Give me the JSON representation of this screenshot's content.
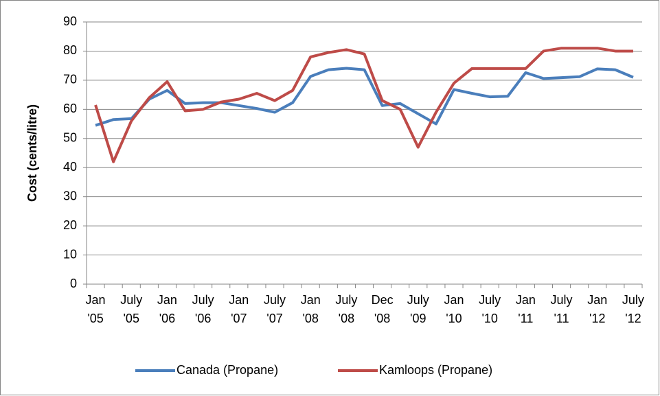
{
  "chart_data": {
    "type": "line",
    "y_label": "Cost (cents/litre)",
    "categories": [
      "Jan '05",
      null,
      "July '05",
      null,
      "Jan '06",
      null,
      "July '06",
      null,
      "Jan '07",
      null,
      "July '07",
      null,
      "Jan '08",
      null,
      "July '08",
      null,
      "Dec '08",
      null,
      "July '09",
      null,
      "Jan '10",
      null,
      "July '10",
      null,
      "Jan '11",
      null,
      "July '11",
      null,
      "Jan '12",
      null,
      "July '12"
    ],
    "series": [
      {
        "name": "Canada (Propane)",
        "color": "#4a7ebb",
        "values": [
          54.5,
          56.5,
          56.8,
          63.5,
          66.5,
          62,
          62.3,
          62.3,
          61.3,
          60.3,
          59,
          62.3,
          71.3,
          73.6,
          74.1,
          73.6,
          61.3,
          62,
          58.5,
          55,
          66.8,
          65.5,
          64.3,
          64.5,
          72.6,
          70.6,
          70.9,
          71.2,
          73.9,
          73.6,
          71
        ]
      },
      {
        "name": "Kamloops (Propane)",
        "color": "#be4b48",
        "values": [
          61.5,
          42,
          56,
          64,
          69.5,
          59.5,
          60,
          62.5,
          63.5,
          65.5,
          63,
          66.5,
          78,
          79.5,
          80.5,
          79,
          63,
          60,
          47,
          59,
          69,
          74,
          74,
          74,
          74,
          80,
          81,
          81,
          81,
          80,
          80
        ]
      }
    ],
    "ylim": [
      0,
      90
    ],
    "yticks": [
      0,
      10,
      20,
      30,
      40,
      50,
      60,
      70,
      80,
      90
    ],
    "grid": true,
    "legend": "bottom"
  }
}
